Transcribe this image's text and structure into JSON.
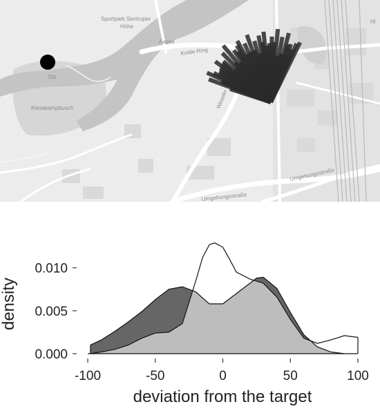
{
  "map": {
    "labels": {
      "sportpark": "Sportpark Sentruper",
      "hohe": "Höhe",
      "aasee": "Aasee",
      "kolde_ring": "Kolde-Ring",
      "kiesekampbusch": "Kiesekampbusch",
      "weseler": "Weseler",
      "umgehungsstrasse_right": "Umgehungsstraße",
      "umgehungsstrasse_bottom": "Umgehungsstraße",
      "hi": "Hi",
      "dtz": "Dtz"
    },
    "target_marker_color": "#000000",
    "ray_color": "#2a2a2a",
    "ray_count": 44
  },
  "chart_data": {
    "type": "area",
    "xlabel": "deviation from the target",
    "ylabel": "density",
    "xlim": [
      -100,
      100
    ],
    "ylim": [
      0,
      0.014
    ],
    "xticks": [
      -100,
      -50,
      0,
      50,
      100
    ],
    "xtick_labels": [
      "-100",
      "-50",
      "0",
      "50",
      "100"
    ],
    "yticks": [
      0.0,
      0.005,
      0.01
    ],
    "ytick_labels": [
      "0.000",
      "0.005",
      "0.010"
    ],
    "grid": false,
    "series": [
      {
        "fill": "#666666",
        "x": [
          -98,
          -90,
          -80,
          -70,
          -60,
          -50,
          -40,
          -30,
          -20,
          -10,
          0,
          10,
          20,
          25,
          30,
          40,
          50,
          60,
          70,
          80,
          90
        ],
        "values": [
          0.001,
          0.0016,
          0.0026,
          0.0037,
          0.0049,
          0.0063,
          0.0075,
          0.0078,
          0.0072,
          0.0058,
          0.0058,
          0.007,
          0.0082,
          0.0088,
          0.0089,
          0.0076,
          0.0048,
          0.0022,
          0.0008,
          0.0002,
          0.0
        ]
      },
      {
        "fill": "#ffffff",
        "x": [
          -98,
          -90,
          -80,
          -70,
          -60,
          -50,
          -40,
          -30,
          -20,
          -15,
          -10,
          -6,
          0,
          5,
          10,
          20,
          30,
          40,
          50,
          60,
          70,
          80,
          90,
          100
        ],
        "values": [
          0.0,
          0.0002,
          0.0005,
          0.001,
          0.0018,
          0.0024,
          0.0025,
          0.0035,
          0.0085,
          0.0112,
          0.0127,
          0.0129,
          0.0124,
          0.011,
          0.0095,
          0.0087,
          0.0082,
          0.0066,
          0.004,
          0.0018,
          0.0012,
          0.0016,
          0.0021,
          0.0019
        ]
      }
    ],
    "overlap_fill": "#bdbdbd"
  }
}
